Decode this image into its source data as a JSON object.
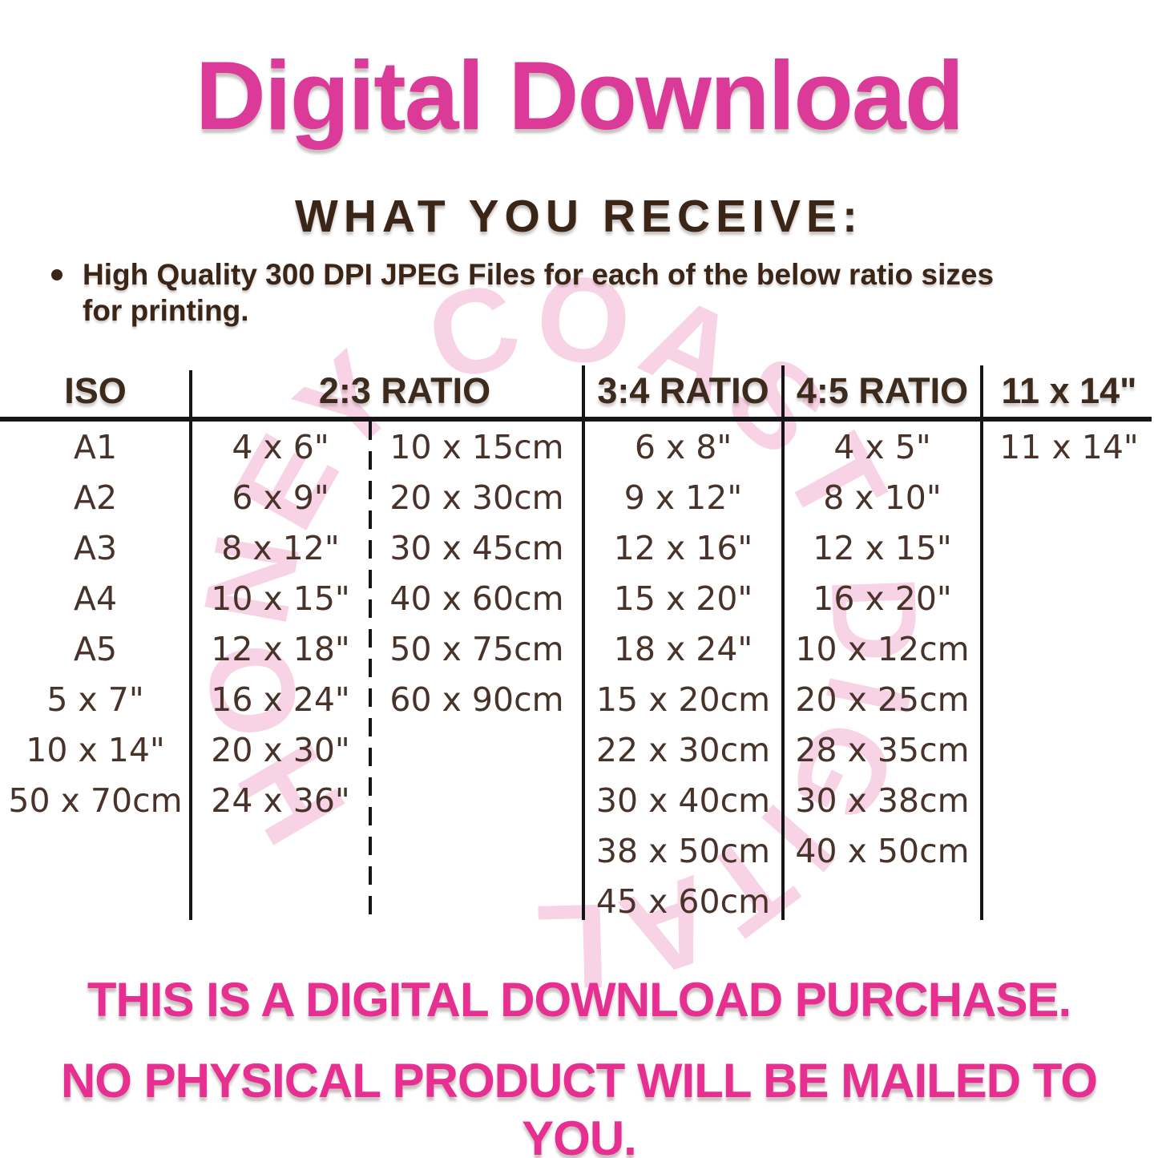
{
  "title": "Digital Download",
  "section_heading": "WHAT YOU RECEIVE:",
  "bullet": {
    "line1": "High Quality 300 DPI JPEG Files for each of the below ratio sizes",
    "line2": "for printing."
  },
  "watermark": "HONEY COAST DIGITAL",
  "table": {
    "headers": [
      "ISO",
      "2:3 RATIO",
      "3:4 RATIO",
      "4:5 RATIO",
      "11 x 14\""
    ],
    "columns": {
      "iso": [
        "A1",
        "A2",
        "A3",
        "A4",
        "A5",
        "5 x 7\"",
        "10 x 14\"",
        "50 x 70cm"
      ],
      "ratio23_in": [
        "4 x 6\"",
        "6 x 9\"",
        "8 x 12\"",
        "10 x 15\"",
        "12 x 18\"",
        "16 x 24\"",
        "20 x 30\"",
        "24 x 36\""
      ],
      "ratio23_cm": [
        "10 x 15cm",
        "20 x 30cm",
        "30 x 45cm",
        "40 x 60cm",
        "50 x 75cm",
        "60 x 90cm"
      ],
      "ratio34": [
        "6 x 8\"",
        "9 x 12\"",
        "12 x 16\"",
        "15 x 20\"",
        "18 x 24\"",
        "15 x 20cm",
        "22 x 30cm",
        "30 x 40cm",
        "38 x 50cm",
        "45 x 60cm"
      ],
      "ratio45": [
        "4 x 5\"",
        "8 x 10\"",
        "12 x 15\"",
        "16 x 20\"",
        "10 x 12cm",
        "20 x 25cm",
        "28 x 35cm",
        "30 x 38cm",
        "40 x 50cm"
      ],
      "eleven14": [
        "11 x 14\""
      ]
    }
  },
  "footer": {
    "line1": "THIS IS A DIGITAL DOWNLOAD PURCHASE.",
    "line2": "NO PHYSICAL PRODUCT WILL BE MAILED TO YOU."
  },
  "colors": {
    "title_pink": "#db3a99",
    "footer_pink": "#e72f91",
    "heading_brown": "#3a2517",
    "table_text_brown": "#473329",
    "table_line_black": "#161616",
    "watermark_pink": "#f8d2e5",
    "background": "#ffffff"
  }
}
